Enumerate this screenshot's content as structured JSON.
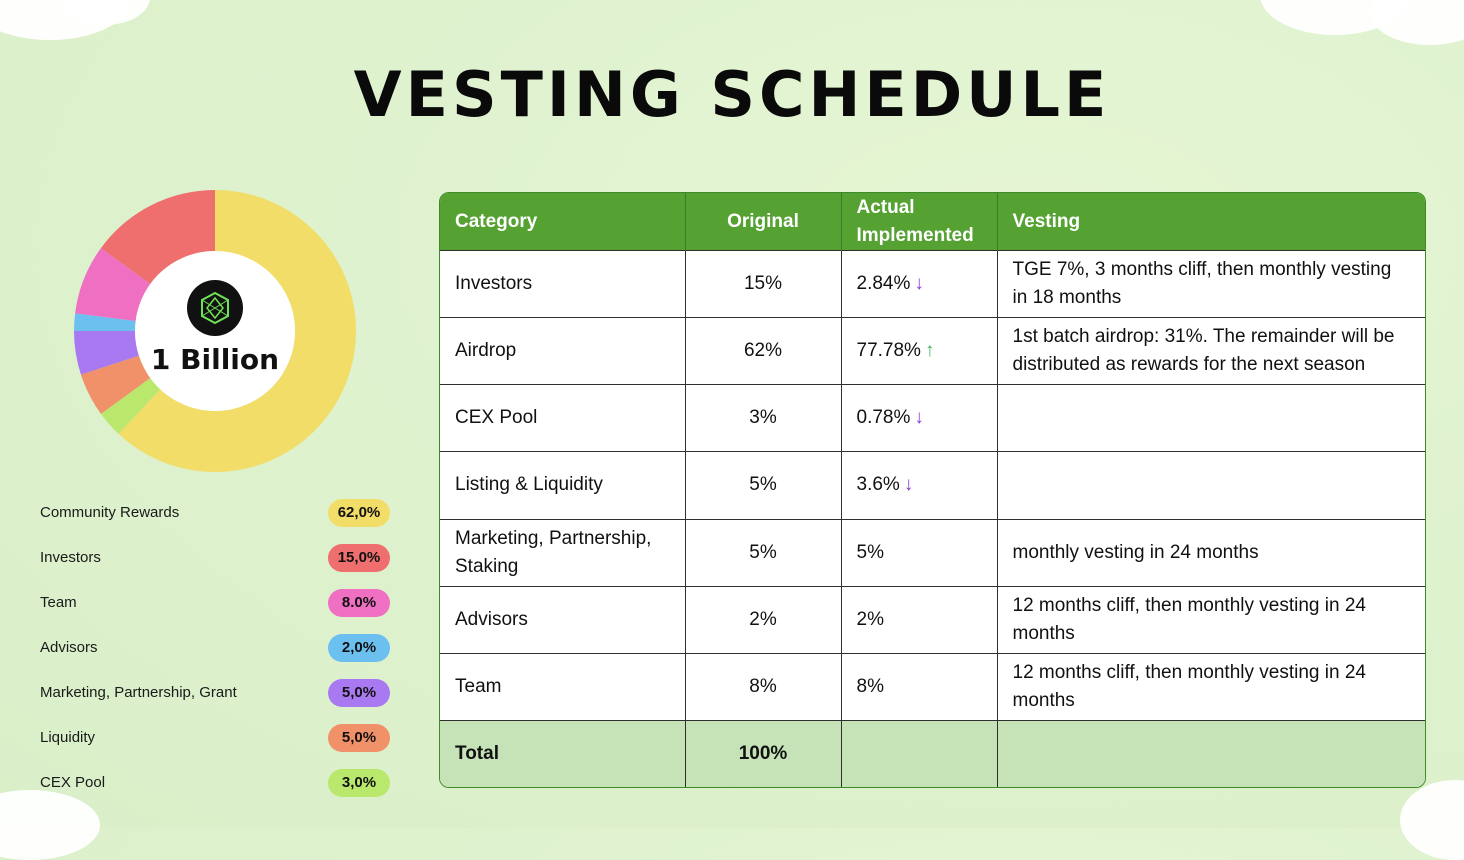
{
  "title": "VESTING SCHEDULE",
  "center_label": "1 Billion",
  "chart_data": {
    "type": "pie",
    "variant": "donut",
    "slices": [
      {
        "label": "Community Rewards",
        "value": 62.0,
        "display": "62,0%",
        "color": "#f2dd68"
      },
      {
        "label": "CEX Pool",
        "value": 3.0,
        "display": "3,0%",
        "color": "#b9e86d"
      },
      {
        "label": "Liquidity",
        "value": 5.0,
        "display": "5,0%",
        "color": "#f0916a"
      },
      {
        "label": "Marketing, Partnership, Grant",
        "value": 5.0,
        "display": "5,0%",
        "color": "#a979f2"
      },
      {
        "label": "Advisors",
        "value": 2.0,
        "display": "2,0%",
        "color": "#6cc0f0"
      },
      {
        "label": "Team",
        "value": 8.0,
        "display": "8.0%",
        "color": "#ef6fc3"
      },
      {
        "label": "Investors",
        "value": 15.0,
        "display": "15,0%",
        "color": "#ef6f6f"
      }
    ]
  },
  "legend": [
    {
      "label": "Community Rewards",
      "value": "62,0%",
      "color": "#f2dd68"
    },
    {
      "label": "Investors",
      "value": "15,0%",
      "color": "#ef6f6f"
    },
    {
      "label": "Team",
      "value": "8.0%",
      "color": "#ef6fc3"
    },
    {
      "label": "Advisors",
      "value": "2,0%",
      "color": "#6cc0f0"
    },
    {
      "label": "Marketing, Partnership, Grant",
      "value": "5,0%",
      "color": "#a979f2"
    },
    {
      "label": "Liquidity",
      "value": "5,0%",
      "color": "#f0916a"
    },
    {
      "label": "CEX Pool",
      "value": "3,0%",
      "color": "#b9e86d"
    }
  ],
  "table": {
    "headers": [
      "Category",
      "Original",
      "Actual Implemented",
      "Vesting"
    ],
    "rows": [
      {
        "category": "Investors",
        "original": "15%",
        "actual": "2.84%",
        "trend": "down",
        "vesting": "TGE 7%, 3 months cliff, then monthly vesting in 18 months"
      },
      {
        "category": "Airdrop",
        "original": "62%",
        "actual": "77.78%",
        "trend": "up",
        "vesting": "1st batch airdrop: 31%. The remainder will be distributed as rewards for the next season"
      },
      {
        "category": "CEX Pool",
        "original": "3%",
        "actual": "0.78%",
        "trend": "down",
        "vesting": ""
      },
      {
        "category": "Listing & Liquidity",
        "original": "5%",
        "actual": "3.6%",
        "trend": "down",
        "vesting": ""
      },
      {
        "category": "Marketing, Partnership, Staking",
        "original": "5%",
        "actual": "5%",
        "trend": "",
        "vesting": "monthly vesting in 24 months"
      },
      {
        "category": "Advisors",
        "original": "2%",
        "actual": "2%",
        "trend": "",
        "vesting": "12 months cliff, then monthly vesting in 24 months"
      },
      {
        "category": "Team",
        "original": "8%",
        "actual": "8%",
        "trend": "",
        "vesting": "12 months cliff, then monthly vesting in 24 months"
      }
    ],
    "total": {
      "label": "Total",
      "original": "100%",
      "actual": "",
      "vesting": ""
    }
  },
  "colors": {
    "header_bg": "#55a233",
    "total_bg": "#c5e3b6",
    "arrow_down": "#8d3bd6",
    "arrow_up": "#3cb35a"
  }
}
